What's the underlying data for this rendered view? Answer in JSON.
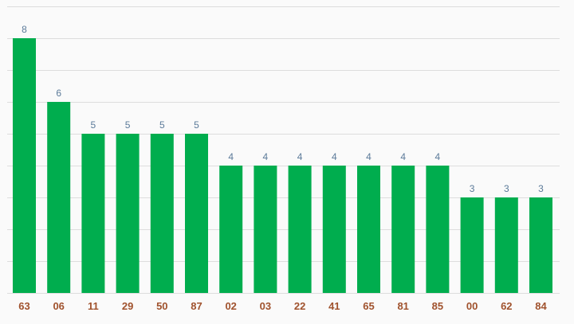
{
  "chart_data": {
    "type": "bar",
    "categories": [
      "63",
      "06",
      "11",
      "29",
      "50",
      "87",
      "02",
      "03",
      "22",
      "41",
      "65",
      "81",
      "85",
      "00",
      "62",
      "84"
    ],
    "values": [
      8,
      6,
      5,
      5,
      5,
      5,
      4,
      4,
      4,
      4,
      4,
      4,
      4,
      3,
      3,
      3
    ],
    "title": "",
    "xlabel": "",
    "ylabel": "",
    "ylim": [
      0,
      9
    ],
    "grid": true,
    "data_labels": true,
    "colors": {
      "bar": "#00ad4e",
      "value_label": "#5b7a99",
      "tick_label": "#a0522d",
      "grid": "#dddddd",
      "background": "#fafafa"
    }
  }
}
